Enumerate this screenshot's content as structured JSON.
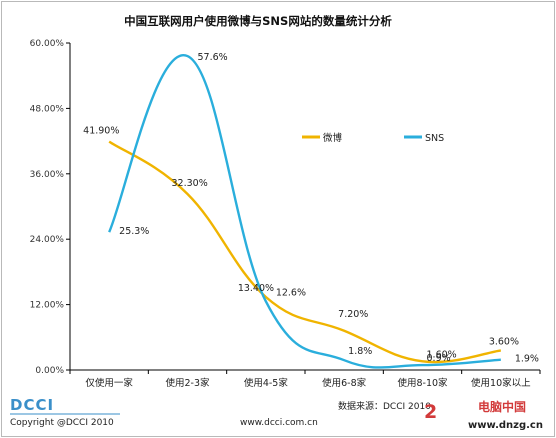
{
  "chart_data": {
    "type": "line",
    "title": "中国互联网用户使用微博与SNS网站的数量统计分析",
    "categories": [
      "仅使用一家",
      "使用2-3家",
      "使用4-5家",
      "使用6-8家",
      "使用8-10家",
      "使用10家以上"
    ],
    "series": [
      {
        "name": "微博",
        "color": "#f0b400",
        "values": [
          41.9,
          32.3,
          13.4,
          7.2,
          1.6,
          3.6
        ],
        "labels": [
          "41.90%",
          "32.30%",
          "13.40%",
          "7.20%",
          "1.60%",
          "3.60%"
        ]
      },
      {
        "name": "SNS",
        "color": "#2aaedc",
        "values": [
          25.3,
          57.6,
          12.6,
          1.8,
          0.9,
          1.9
        ],
        "labels": [
          "25.3%",
          "57.6%",
          "12.6%",
          "1.8%",
          "0.9%",
          "1.9%"
        ]
      }
    ],
    "yticks": [
      "0.00%",
      "12.00%",
      "24.00%",
      "36.00%",
      "48.00%",
      "60.00%"
    ],
    "ylim": [
      0,
      60
    ],
    "grid": false,
    "legend_position": "upper-right"
  },
  "footer": {
    "logo": "DCCI",
    "copyright": "Copyright @DCCI 2010",
    "website": "www.dcci.com.cn",
    "source": "数据来源：DCCI 2010"
  },
  "watermark": {
    "big": "2",
    "cn": "电脑中国",
    "url": "www.dnzg.cn"
  }
}
